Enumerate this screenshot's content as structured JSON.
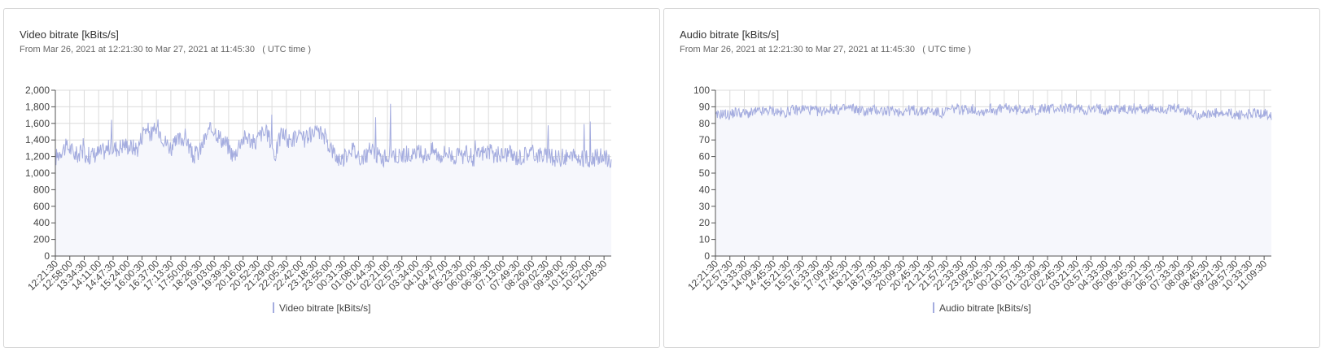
{
  "charts": [
    {
      "title": "Video bitrate [kBits/s]",
      "subtitle": "From Mar 26, 2021 at 12:21:30 to Mar 27, 2021 at 11:45:30   ( UTC time )"
    },
    {
      "title": "Audio bitrate [kBits/s]",
      "subtitle": "From Mar 26, 2021 at 12:21:30 to Mar 27, 2021 at 11:45:30   ( UTC time )"
    }
  ],
  "colors": {
    "series": "#a4acdf",
    "fill": "#f6f7fc",
    "grid": "#dcdcdc",
    "axis": "#555555"
  },
  "chart_data": [
    {
      "type": "area",
      "title": "Video bitrate [kBits/s]",
      "legend": [
        "Video bitrate [kBits/s]"
      ],
      "legend_position": "bottom-center",
      "grid": true,
      "ylim": [
        0,
        2000
      ],
      "yticks": [
        "0",
        "200",
        "400",
        "600",
        "800",
        "1,000",
        "1,200",
        "1,400",
        "1,600",
        "1,800",
        "2,000"
      ],
      "ytick_values": [
        0,
        200,
        400,
        600,
        800,
        1000,
        1200,
        1400,
        1600,
        1800,
        2000
      ],
      "xticks": [
        "12:21:30",
        "12:58:00",
        "13:34:30",
        "14:11:00",
        "14:47:30",
        "15:24:00",
        "16:00:30",
        "16:37:00",
        "17:13:30",
        "17:50:00",
        "18:26:30",
        "19:03:00",
        "19:39:30",
        "20:16:00",
        "20:52:30",
        "21:29:00",
        "22:05:30",
        "22:42:00",
        "23:18:30",
        "23:55:00",
        "00:31:30",
        "01:08:00",
        "01:44:30",
        "02:21:00",
        "02:57:30",
        "03:34:00",
        "04:10:30",
        "04:47:00",
        "05:23:30",
        "06:00:00",
        "06:36:30",
        "07:13:00",
        "07:49:30",
        "08:26:00",
        "09:02:30",
        "09:39:00",
        "10:15:30",
        "10:52:00",
        "11:28:30"
      ],
      "series": [
        {
          "name": "Video bitrate [kBits/s]",
          "values": [
            1180,
            1300,
            1310,
            1220,
            1250,
            1210,
            1240,
            1260,
            1320,
            1300,
            1350,
            1320,
            1300,
            1550,
            1470,
            1550,
            1380,
            1300,
            1400,
            1440,
            1200,
            1260,
            1450,
            1550,
            1430,
            1350,
            1200,
            1400,
            1440,
            1350,
            1480,
            1470,
            1220,
            1500,
            1380,
            1440,
            1400,
            1440,
            1470,
            1480,
            1330,
            1190,
            1170,
            1320,
            1230,
            1180,
            1290,
            1210,
            1180,
            1260,
            1200,
            1240,
            1190,
            1240,
            1220,
            1280,
            1210,
            1260,
            1210,
            1190,
            1230,
            1180,
            1240,
            1260,
            1210,
            1220,
            1240,
            1190,
            1200,
            1260,
            1230,
            1220,
            1190,
            1180,
            1190,
            1200,
            1180,
            1170,
            1180,
            1190,
            1190,
            1150
          ]
        }
      ]
    },
    {
      "type": "area",
      "title": "Audio bitrate [kBits/s]",
      "legend": [
        "Audio bitrate [kBits/s]"
      ],
      "legend_position": "bottom-center",
      "grid": true,
      "ylim": [
        0,
        100
      ],
      "yticks": [
        "0",
        "10",
        "20",
        "30",
        "40",
        "50",
        "60",
        "70",
        "80",
        "90",
        "100"
      ],
      "ytick_values": [
        0,
        10,
        20,
        30,
        40,
        50,
        60,
        70,
        80,
        90,
        100
      ],
      "xticks": [
        "12:21:30",
        "12:57:30",
        "13:33:30",
        "14:09:30",
        "14:45:30",
        "15:21:30",
        "15:57:30",
        "16:33:30",
        "17:09:30",
        "17:45:30",
        "18:21:30",
        "18:57:30",
        "19:33:30",
        "20:09:30",
        "20:45:30",
        "21:21:30",
        "21:57:30",
        "22:33:30",
        "23:09:30",
        "23:45:30",
        "00:21:30",
        "00:57:30",
        "01:33:30",
        "02:09:30",
        "02:45:30",
        "03:21:30",
        "03:57:30",
        "04:33:30",
        "05:09:30",
        "05:45:30",
        "06:21:30",
        "06:57:30",
        "07:33:30",
        "08:09:30",
        "08:45:30",
        "09:21:30",
        "09:57:30",
        "10:33:30",
        "11:09:30"
      ],
      "series": [
        {
          "name": "Audio bitrate [kBits/s]",
          "values": [
            84,
            86,
            85,
            87,
            86,
            86,
            87,
            87,
            88,
            87,
            86,
            88,
            88,
            89,
            88,
            87,
            88,
            89,
            88,
            89,
            89,
            88,
            87,
            88,
            88,
            87,
            88,
            87,
            88,
            88,
            87,
            88,
            87,
            86,
            88,
            89,
            88,
            89,
            88,
            87,
            89,
            88,
            89,
            89,
            88,
            89,
            88,
            88,
            89,
            89,
            89,
            89,
            89,
            89,
            88,
            88,
            89,
            88,
            89,
            89,
            88,
            89,
            89,
            88,
            89,
            89,
            88,
            89,
            88,
            87,
            85,
            86,
            85,
            86,
            85,
            86,
            85,
            85,
            86,
            86,
            86,
            85
          ]
        }
      ]
    }
  ]
}
